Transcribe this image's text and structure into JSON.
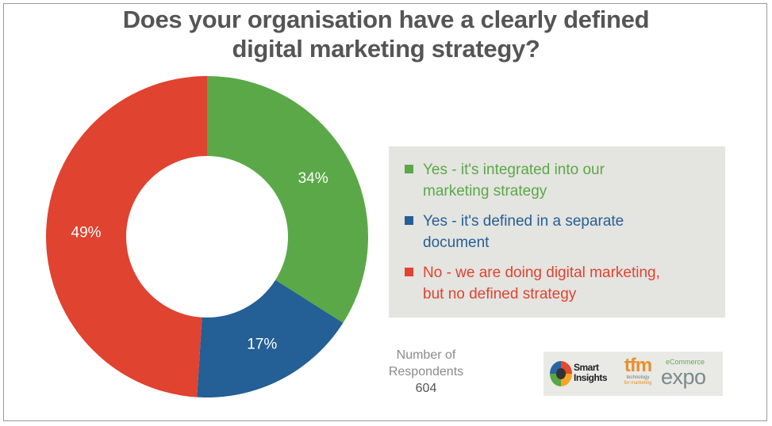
{
  "title_lines": [
    "Does your organisation have a clearly defined",
    "digital marketing strategy?"
  ],
  "chart_data": {
    "type": "pie",
    "donut": true,
    "categories": [
      "Yes - it's integrated into our marketing strategy",
      "Yes - it's defined in a separate document",
      "No - we are doing digital marketing, but no defined strategy"
    ],
    "values": [
      34,
      17,
      49
    ],
    "value_labels": [
      "34%",
      "17%",
      "49%"
    ],
    "colors": [
      "#5ba848",
      "#245f96",
      "#e04330"
    ],
    "legend_position": "right"
  },
  "legend": [
    {
      "lines": [
        "Yes - it's integrated into our",
        "marketing strategy"
      ],
      "color": "#5ba848"
    },
    {
      "lines": [
        "Yes - it's defined in a separate",
        "document"
      ],
      "color": "#245f96"
    },
    {
      "lines": [
        "No - we are doing digital marketing,",
        "but no defined strategy"
      ],
      "color": "#e04330"
    }
  ],
  "respondents": {
    "line1": "Number of",
    "line2": "Respondents",
    "count": "604"
  },
  "logos": {
    "smart_insights": {
      "line1": "Smart",
      "line2": "Insights"
    },
    "tfm": {
      "main": "tfm",
      "sub1": "technology",
      "sub2": "for marketing"
    },
    "ecommerce": {
      "top": "eCommerce",
      "main": "expo"
    }
  }
}
